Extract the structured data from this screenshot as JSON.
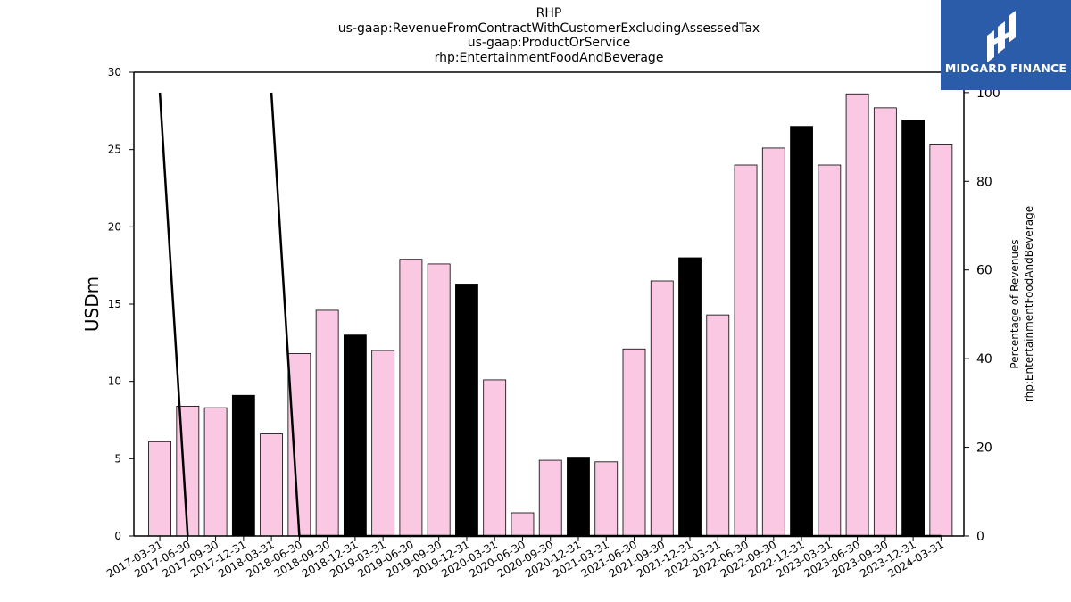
{
  "chart_data": {
    "type": "bar",
    "title_lines": [
      "RHP",
      "us-gaap:RevenueFromContractWithCustomerExcludingAssessedTax",
      "us-gaap:ProductOrService",
      "rhp:EntertainmentFoodAndBeverage"
    ],
    "ylabel": "USDm",
    "ylabel_right": [
      "Percentage of Revenues",
      "rhp:EntertainmentFoodAndBeverage"
    ],
    "ylim": [
      0,
      30
    ],
    "ylim_right": [
      0,
      104.6
    ],
    "yticks": [
      0,
      5,
      10,
      15,
      20,
      25,
      30
    ],
    "yticks_right": [
      0,
      20,
      40,
      60,
      80,
      100
    ],
    "categories": [
      "2017-03-31",
      "2017-06-30",
      "2017-09-30",
      "2017-12-31",
      "2018-03-31",
      "2018-06-30",
      "2018-09-30",
      "2018-12-31",
      "2019-03-31",
      "2019-06-30",
      "2019-09-30",
      "2019-12-31",
      "2020-03-31",
      "2020-06-30",
      "2020-09-30",
      "2020-12-31",
      "2021-03-31",
      "2021-06-30",
      "2021-09-30",
      "2021-12-31",
      "2022-03-31",
      "2022-06-30",
      "2022-09-30",
      "2022-12-31",
      "2023-03-31",
      "2023-06-30",
      "2023-09-30",
      "2023-12-31",
      "2024-03-31"
    ],
    "values": [
      6.1,
      8.4,
      8.3,
      9.1,
      6.6,
      11.8,
      14.6,
      13.0,
      12.0,
      17.9,
      17.6,
      16.3,
      10.1,
      1.5,
      4.9,
      5.1,
      4.8,
      12.1,
      16.5,
      18.0,
      14.3,
      24.0,
      25.1,
      26.5,
      24.0,
      28.6,
      27.7,
      26.9,
      25.3
    ],
    "bar_colors_by_quarter_end": {
      "03-31": "#fbc8e3",
      "06-30": "#fbc8e3",
      "09-30": "#fbc8e3",
      "12-31": "#000000"
    },
    "line_series": {
      "axis": "right",
      "values": [
        100,
        0,
        null,
        null,
        100,
        0,
        0,
        0,
        0,
        0,
        0,
        0,
        0,
        0,
        0,
        0,
        0,
        0,
        0,
        0,
        0,
        0,
        0,
        0,
        0,
        0,
        0,
        0,
        0
      ]
    },
    "grid": false,
    "legend": "none"
  },
  "logo": {
    "text": "MIDGARD FINANCE"
  },
  "colors": {
    "bar_fill": "#fbc8e3",
    "bar_q4": "#000000",
    "line": "#000000",
    "logo_bg": "#2a5caa"
  }
}
